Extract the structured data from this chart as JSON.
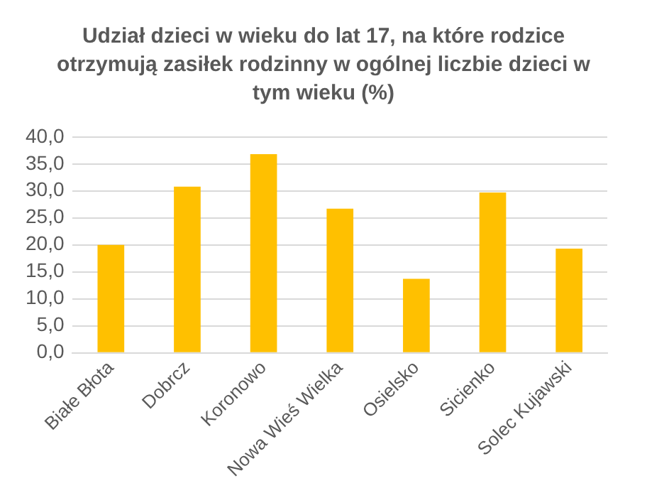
{
  "chart_data": {
    "type": "bar",
    "title": "Udział dzieci w wieku do lat 17, na które rodzice otrzymują zasiłek rodzinny w ogólnej liczbie dzieci w tym wieku (%)",
    "categories": [
      "Białe Błota",
      "Dobrcz",
      "Koronowo",
      "Nowa Wieś Wielka",
      "Osielsko",
      "Sicienko",
      "Solec Kujawski"
    ],
    "values": [
      20.0,
      30.8,
      36.8,
      26.7,
      13.7,
      29.7,
      19.3
    ],
    "color": "#ffc000",
    "ylim": [
      0,
      40
    ],
    "yticks": [
      {
        "value": 0,
        "label": "0,0"
      },
      {
        "value": 5,
        "label": "5,0"
      },
      {
        "value": 10,
        "label": "10,0"
      },
      {
        "value": 15,
        "label": "15,0"
      },
      {
        "value": 20,
        "label": "20,0"
      },
      {
        "value": 25,
        "label": "25,0"
      },
      {
        "value": 30,
        "label": "30,0"
      },
      {
        "value": 35,
        "label": "35,0"
      },
      {
        "value": 40,
        "label": "40,0"
      }
    ],
    "grid": "y",
    "legend": false
  }
}
